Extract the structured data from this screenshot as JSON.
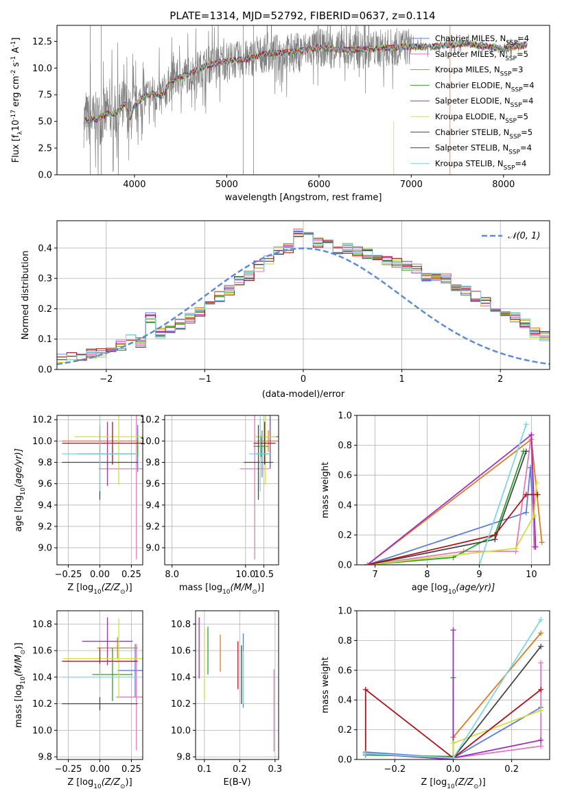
{
  "figure_title": "PLATE=1314, MJD=52792, FIBERID=0637, z=0.114",
  "colors": {
    "text": "#000000",
    "grid": "#b0b0b0",
    "frame": "#000000",
    "spectrum": "#808080",
    "normal_curve": "#5b8bd6"
  },
  "models": [
    {
      "name": "Chabrier MILES",
      "nssp": "4",
      "color": "#5e7dd6"
    },
    {
      "name": "Salpeter MILES",
      "nssp": "5",
      "color": "#e377c2"
    },
    {
      "name": "Kroupa MILES",
      "nssp": "3",
      "color": "#e07a1f"
    },
    {
      "name": "Chabrier ELODIE",
      "nssp": "4",
      "color": "#2ca02c"
    },
    {
      "name": "Salpeter ELODIE",
      "nssp": "4",
      "color": "#9e2fc0"
    },
    {
      "name": "Kroupa ELODIE",
      "nssp": "5",
      "color": "#cfe03a"
    },
    {
      "name": "Chabrier STELIB",
      "nssp": "5",
      "color": "#454545"
    },
    {
      "name": "Salpeter STELIB",
      "nssp": "4",
      "color": "#b0101a"
    },
    {
      "name": "Kroupa STELIB",
      "nssp": "4",
      "color": "#7dd6e0"
    }
  ],
  "chart_data": [
    {
      "id": "spectrum",
      "type": "line",
      "xlabel": "wavelength [Angstrom, rest frame]",
      "ylabel": "Flux [f",
      "ylabel_sub": "λ",
      "ylabel_rest": "10",
      "ylabel_exp": "-17",
      "ylabel_units": " erg cm",
      "ylabel_units_exp": "-2",
      "ylabel_units2": " s",
      "ylabel_units2_exp": "-1",
      "ylabel_units3": " A",
      "ylabel_units3_exp": "-1",
      "ylabel_close": "]",
      "xlim": [
        3160,
        8500
      ],
      "ylim": [
        0,
        14
      ],
      "xticks": [
        4000,
        5000,
        6000,
        7000,
        8000
      ],
      "yticks": [
        0.0,
        2.5,
        5.0,
        7.5,
        10.0,
        12.5
      ],
      "ytick_labels": [
        "0.0",
        "2.5",
        "5.0",
        "7.5",
        "10.0",
        "12.5"
      ],
      "continuum": [
        [
          3450,
          5.1
        ],
        [
          3600,
          5.2
        ],
        [
          3700,
          5.7
        ],
        [
          3800,
          5.8
        ],
        [
          3900,
          6.6
        ],
        [
          3950,
          5.3
        ],
        [
          4000,
          6.5
        ],
        [
          4100,
          7.3
        ],
        [
          4200,
          7.6
        ],
        [
          4300,
          7.4
        ],
        [
          4400,
          8.8
        ],
        [
          4600,
          9.5
        ],
        [
          4800,
          10.3
        ],
        [
          5000,
          10.7
        ],
        [
          5200,
          10.8
        ],
        [
          5400,
          11.3
        ],
        [
          5700,
          11.5
        ],
        [
          6000,
          11.9
        ],
        [
          6300,
          11.7
        ],
        [
          6600,
          11.8
        ],
        [
          6900,
          12.0
        ],
        [
          7200,
          12.0
        ],
        [
          7600,
          12.3
        ],
        [
          8000,
          11.8
        ],
        [
          8250,
          12.2
        ]
      ]
    },
    {
      "id": "residuals",
      "type": "histogram",
      "xlabel": "(data-model)/error",
      "ylabel": "Normed distribution",
      "xlim": [
        -2.5,
        2.5
      ],
      "ylim": [
        0,
        0.49
      ],
      "xticks": [
        -2,
        -1,
        0,
        1,
        2
      ],
      "xtick_labels": [
        "−2",
        "−1",
        "0",
        "1",
        "2"
      ],
      "yticks": [
        0.0,
        0.1,
        0.2,
        0.3,
        0.4
      ],
      "ytick_labels": [
        "0.0",
        "0.1",
        "0.2",
        "0.3",
        "0.4"
      ],
      "legend_label": "𝒩(0, 1)",
      "bin_width": 0.1,
      "base_hist": [
        0.035,
        0.035,
        0.04,
        0.04,
        0.05,
        0.055,
        0.065,
        0.08,
        0.1,
        0.09,
        0.17,
        0.12,
        0.13,
        0.15,
        0.17,
        0.19,
        0.21,
        0.24,
        0.26,
        0.29,
        0.31,
        0.34,
        0.36,
        0.39,
        0.4,
        0.45,
        0.44,
        0.42,
        0.41,
        0.39,
        0.4,
        0.39,
        0.38,
        0.37,
        0.36,
        0.35,
        0.34,
        0.33,
        0.3,
        0.31,
        0.3,
        0.27,
        0.26,
        0.24,
        0.22,
        0.2,
        0.18,
        0.17,
        0.15,
        0.12,
        0.11,
        0.1,
        0.09,
        0.08,
        0.07,
        0.06,
        0.055,
        0.05,
        0.045,
        0.04,
        0.04,
        0.035,
        0.03,
        0.03,
        0.025,
        0.02,
        0.02,
        0.02,
        0.02,
        0.02,
        0.02
      ]
    },
    {
      "id": "age-vs-z",
      "type": "errorbar",
      "xlabel": "Z [log",
      "xlabel_sub": "10",
      "xlabel_rest": "(Z/Z",
      "xlabel_sub2": "⊙",
      "xlabel_close": ")]",
      "ylabel": "age  [log",
      "ylabel_sub": "10",
      "ylabel_rest": "(age/yr)]",
      "xlim": [
        -0.34,
        0.34
      ],
      "ylim": [
        8.84,
        10.24
      ],
      "xticks": [
        -0.25,
        0.0,
        0.25
      ],
      "xtick_labels": [
        "−0.25",
        "0.00",
        "0.25"
      ],
      "yticks": [
        9.0,
        9.2,
        9.4,
        9.6,
        9.8,
        10.0,
        10.2
      ],
      "ytick_labels": [
        "9.0",
        "9.2",
        "9.4",
        "9.6",
        "9.8",
        "10.0",
        "10.2"
      ],
      "points": [
        {
          "model": 0,
          "x": 0.3,
          "xerr": 0.0,
          "y": 9.93,
          "yerr": 0.22
        },
        {
          "model": 1,
          "x": 0.29,
          "xerr": 0.3,
          "y": 9.74,
          "yerr": 0.85
        },
        {
          "model": 2,
          "x": 0.0,
          "xerr": 0.3,
          "y": 10.0,
          "yerr": 0.1
        },
        {
          "model": 3,
          "x": 0.3,
          "xerr": 0.0,
          "y": 9.95,
          "yerr": 0.1
        },
        {
          "model": 4,
          "x": 0.06,
          "xerr": 0.23,
          "y": 9.88,
          "yerr": 0.3
        },
        {
          "model": 5,
          "x": 0.15,
          "xerr": 0.35,
          "y": 10.04,
          "yerr": 0.45
        },
        {
          "model": 6,
          "x": -0.0,
          "xerr": 0.3,
          "y": 9.8,
          "yerr": 0.35
        },
        {
          "model": 7,
          "x": 0.1,
          "xerr": 0.4,
          "y": 9.98,
          "yerr": 0.2
        },
        {
          "model": 8,
          "x": 0.0,
          "xerr": 0.3,
          "y": 9.88,
          "yerr": 0.35
        }
      ]
    },
    {
      "id": "age-vs-mass",
      "type": "errorbar",
      "xlabel": "mass [log",
      "xlabel_sub": "10",
      "xlabel_rest": "(M/M",
      "xlabel_sub2": "⊙",
      "xlabel_close": ")]",
      "xlim": [
        7.8,
        10.9
      ],
      "ylim": [
        8.84,
        10.24
      ],
      "xticks": [
        8.0,
        10.0,
        10.5
      ],
      "xtick_labels": [
        "8.0",
        "10.0",
        "10.5"
      ],
      "xticks_hidden_extra": [],
      "yticks": [
        9.0,
        9.2,
        9.4,
        9.6,
        9.8,
        10.0,
        10.2
      ],
      "ytick_labels": [
        "9.0",
        "9.2",
        "9.4",
        "9.6",
        "9.8",
        "10.0",
        "10.2"
      ],
      "points": [
        {
          "model": 0,
          "x": 10.45,
          "xerr": 0.2,
          "y": 9.88,
          "yerr": 0.22
        },
        {
          "model": 1,
          "x": 10.25,
          "xerr": 0.4,
          "y": 9.74,
          "yerr": 0.85
        },
        {
          "model": 2,
          "x": 10.62,
          "xerr": 0.3,
          "y": 10.0,
          "yerr": 0.1
        },
        {
          "model": 3,
          "x": 10.42,
          "xerr": 0.2,
          "y": 9.95,
          "yerr": 0.1
        },
        {
          "model": 4,
          "x": 10.67,
          "xerr": 0.4,
          "y": 10.04,
          "yerr": 0.3
        },
        {
          "model": 5,
          "x": 10.54,
          "xerr": 0.3,
          "y": 10.04,
          "yerr": 0.45
        },
        {
          "model": 6,
          "x": 10.35,
          "xerr": 0.4,
          "y": 9.8,
          "yerr": 0.35
        },
        {
          "model": 7,
          "x": 10.52,
          "xerr": 0.3,
          "y": 9.98,
          "yerr": 0.2
        },
        {
          "model": 8,
          "x": 10.4,
          "xerr": 0.3,
          "y": 9.88,
          "yerr": 0.35
        }
      ]
    },
    {
      "id": "mass-weight-vs-age",
      "type": "line",
      "xlabel": "age  [log",
      "xlabel_sub": "10",
      "xlabel_rest": "(age/yr)]",
      "ylabel": "mass weight",
      "xlim": [
        6.65,
        10.35
      ],
      "ylim": [
        0,
        1.0
      ],
      "xticks": [
        7,
        8,
        9,
        10
      ],
      "xtick_labels": [
        "7",
        "8",
        "9",
        "10"
      ],
      "yticks": [
        0.0,
        0.2,
        0.4,
        0.6,
        0.8,
        1.0
      ],
      "ytick_labels": [
        "0.0",
        "0.2",
        "0.4",
        "0.6",
        "0.8",
        "1.0"
      ],
      "series": [
        {
          "model": 0,
          "points": [
            [
              6.85,
              0.0
            ],
            [
              9.9,
              0.35
            ],
            [
              9.98,
              0.65
            ],
            [
              10.07,
              0.12
            ]
          ]
        },
        {
          "model": 1,
          "points": [
            [
              6.85,
              0.0
            ],
            [
              8.7,
              0.09
            ],
            [
              9.7,
              0.09
            ],
            [
              10.0,
              0.87
            ],
            [
              10.05,
              0.12
            ]
          ]
        },
        {
          "model": 2,
          "points": [
            [
              6.85,
              0.0
            ],
            [
              10.0,
              0.84
            ],
            [
              10.2,
              0.15
            ]
          ]
        },
        {
          "model": 3,
          "points": [
            [
              6.85,
              0.0
            ],
            [
              8.5,
              0.05
            ],
            [
              9.3,
              0.2
            ],
            [
              9.85,
              0.76
            ]
          ]
        },
        {
          "model": 4,
          "points": [
            [
              6.85,
              0.0
            ],
            [
              10.0,
              0.87
            ],
            [
              10.08,
              0.12
            ]
          ]
        },
        {
          "model": 5,
          "points": [
            [
              6.85,
              0.0
            ],
            [
              9.7,
              0.11
            ],
            [
              10.05,
              0.33
            ],
            [
              10.1,
              0.55
            ]
          ]
        },
        {
          "model": 6,
          "points": [
            [
              6.85,
              0.0
            ],
            [
              9.3,
              0.17
            ],
            [
              9.9,
              0.76
            ]
          ]
        },
        {
          "model": 7,
          "points": [
            [
              6.85,
              0.0
            ],
            [
              9.3,
              0.2
            ],
            [
              9.9,
              0.47
            ],
            [
              10.12,
              0.47
            ]
          ]
        },
        {
          "model": 8,
          "points": [
            [
              6.85,
              0.0
            ],
            [
              9.0,
              0.0
            ],
            [
              9.9,
              0.94
            ]
          ]
        }
      ]
    },
    {
      "id": "mass-vs-z",
      "type": "errorbar",
      "xlabel": "Z [log",
      "xlabel_sub": "10",
      "xlabel_rest": "(Z/Z",
      "xlabel_sub2": "⊙",
      "xlabel_close": ")]",
      "ylabel": "mass [log",
      "ylabel_sub": "10",
      "ylabel_rest": "(M/M",
      "ylabel_sub2": "⊙",
      "ylabel_close": ")]",
      "xlim": [
        -0.34,
        0.34
      ],
      "ylim": [
        9.78,
        10.9
      ],
      "xticks": [
        -0.25,
        0.0,
        0.25
      ],
      "xtick_labels": [
        "−0.25",
        "0.00",
        "0.25"
      ],
      "yticks": [
        9.8,
        10.0,
        10.2,
        10.4,
        10.6,
        10.8
      ],
      "ytick_labels": [
        "9.8",
        "10.0",
        "10.2",
        "10.4",
        "10.6",
        "10.8"
      ],
      "points": [
        {
          "model": 0,
          "x": 0.28,
          "xerr": 0.14,
          "y": 10.45,
          "yerr": 0.2
        },
        {
          "model": 1,
          "x": 0.29,
          "xerr": 0.16,
          "y": 10.25,
          "yerr": 0.4
        },
        {
          "model": 2,
          "x": 0.14,
          "xerr": 0.16,
          "y": 10.62,
          "yerr": 0.08
        },
        {
          "model": 3,
          "x": 0.1,
          "xerr": 0.16,
          "y": 10.42,
          "yerr": 0.2
        },
        {
          "model": 4,
          "x": 0.06,
          "xerr": 0.2,
          "y": 10.67,
          "yerr": 0.18
        },
        {
          "model": 5,
          "x": 0.15,
          "xerr": 0.44,
          "y": 10.54,
          "yerr": 0.3
        },
        {
          "model": 6,
          "x": 0.0,
          "xerr": 0.3,
          "y": 10.2,
          "yerr": 0.05
        },
        {
          "model": 7,
          "x": 0.0,
          "xerr": 0.3,
          "y": 10.52,
          "yerr": 0.1
        },
        {
          "model": 8,
          "x": 0.0,
          "xerr": 0.3,
          "y": 10.4,
          "yerr": 0.1
        }
      ]
    },
    {
      "id": "mass-vs-ebv",
      "type": "errorbar",
      "xlabel": "E(B-V)",
      "xlim": [
        0.075,
        0.31
      ],
      "ylim": [
        9.78,
        10.9
      ],
      "xticks": [
        0.1,
        0.2,
        0.3
      ],
      "xtick_labels": [
        "0.1",
        "0.2",
        "0.3"
      ],
      "yticks": [
        9.8,
        10.0,
        10.2,
        10.4,
        10.6,
        10.8
      ],
      "ytick_labels": [
        "9.8",
        "10.0",
        "10.2",
        "10.4",
        "10.6",
        "10.8"
      ],
      "points": [
        {
          "model": 0,
          "x": 0.21,
          "xerr": 0.0,
          "y": 10.45,
          "yerr": 0.28
        },
        {
          "model": 1,
          "x": 0.297,
          "xerr": 0.0,
          "y": 10.15,
          "yerr": 0.31
        },
        {
          "model": 2,
          "x": 0.145,
          "xerr": 0.0,
          "y": 10.58,
          "yerr": 0.14
        },
        {
          "model": 3,
          "x": 0.11,
          "xerr": 0.0,
          "y": 10.6,
          "yerr": 0.18
        },
        {
          "model": 4,
          "x": 0.085,
          "xerr": 0.0,
          "y": 10.62,
          "yerr": 0.23
        },
        {
          "model": 5,
          "x": 0.1,
          "xerr": 0.0,
          "y": 10.5,
          "yerr": 0.27
        },
        {
          "model": 6,
          "x": 0.205,
          "xerr": 0.0,
          "y": 10.42,
          "yerr": 0.22
        },
        {
          "model": 7,
          "x": 0.195,
          "xerr": 0.0,
          "y": 10.49,
          "yerr": 0.18
        },
        {
          "model": 8,
          "x": 0.21,
          "xerr": 0.0,
          "y": 10.4,
          "yerr": 0.2
        }
      ]
    },
    {
      "id": "mass-weight-vs-z",
      "type": "line",
      "xlabel": "Z [log",
      "xlabel_sub": "10",
      "xlabel_rest": "(Z/Z",
      "xlabel_sub2": "⊙",
      "xlabel_close": ")]",
      "ylabel": "mass weight",
      "xlim": [
        -0.33,
        0.33
      ],
      "ylim": [
        0,
        1.0
      ],
      "xticks": [
        -0.2,
        0.0,
        0.2
      ],
      "xtick_labels": [
        "−0.2",
        "0.0",
        "0.2"
      ],
      "yticks": [
        0.0,
        0.2,
        0.4,
        0.6,
        0.8,
        1.0
      ],
      "ytick_labels": [
        "0.0",
        "0.2",
        "0.4",
        "0.6",
        "0.8",
        "1.0"
      ],
      "series": [
        {
          "model": 0,
          "points": [
            [
              -0.3,
              0.05
            ],
            [
              0.0,
              0.01
            ],
            [
              0.3,
              0.35
            ]
          ]
        },
        {
          "model": 1,
          "points": [
            [
              -0.3,
              0.04
            ],
            [
              0.0,
              0.01
            ],
            [
              0.3,
              0.09
            ],
            [
              0.3,
              0.65
            ]
          ]
        },
        {
          "model": 2,
          "points": [
            [
              0.0,
              0.0
            ],
            [
              0.0,
              0.15
            ],
            [
              0.3,
              0.85
            ]
          ]
        },
        {
          "model": 3,
          "points": [
            [
              -0.3,
              0.03
            ],
            [
              0.0,
              0.02
            ],
            [
              0.0,
              0.55
            ]
          ]
        },
        {
          "model": 4,
          "points": [
            [
              -0.3,
              0.04
            ],
            [
              0.0,
              0.0
            ],
            [
              0.0,
              0.87
            ],
            [
              0.0,
              0.01
            ],
            [
              0.3,
              0.13
            ]
          ]
        },
        {
          "model": 5,
          "points": [
            [
              0.0,
              0.0
            ],
            [
              0.0,
              0.11
            ],
            [
              0.3,
              0.33
            ]
          ]
        },
        {
          "model": 6,
          "points": [
            [
              0.0,
              0.01
            ],
            [
              0.3,
              0.76
            ]
          ]
        },
        {
          "model": 7,
          "points": [
            [
              -0.3,
              0.04
            ],
            [
              -0.3,
              0.47
            ],
            [
              0.0,
              0.01
            ],
            [
              0.3,
              0.47
            ]
          ]
        },
        {
          "model": 8,
          "points": [
            [
              -0.3,
              0.04
            ],
            [
              0.0,
              0.01
            ],
            [
              0.3,
              0.94
            ]
          ]
        }
      ]
    }
  ]
}
